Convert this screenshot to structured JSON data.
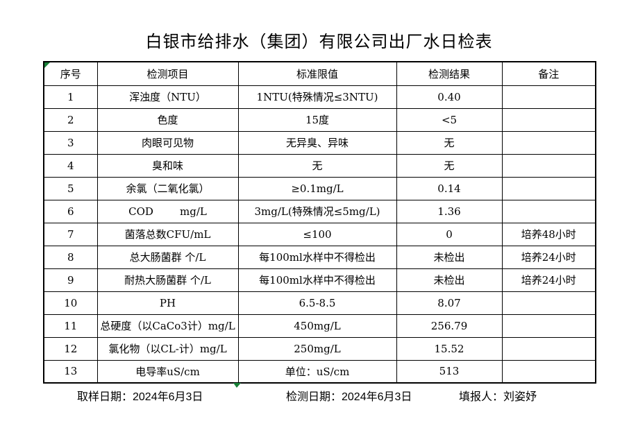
{
  "title": "白银市给排水（集团）有限公司出厂水日检表",
  "table": {
    "headers": {
      "no": "序号",
      "item": "检测项目",
      "limit": "标准限值",
      "result": "检测结果",
      "remark": "备注"
    },
    "rows": [
      {
        "no": "1",
        "item": "浑浊度（NTU）",
        "limit": "1NTU(特殊情况≤3NTU)",
        "result": "0.40",
        "remark": ""
      },
      {
        "no": "2",
        "item": "色度",
        "limit": "15度",
        "result": "<5",
        "remark": ""
      },
      {
        "no": "3",
        "item": "肉眼可见物",
        "limit": "无异臭、异味",
        "result": "无",
        "remark": ""
      },
      {
        "no": "4",
        "item": "臭和味",
        "limit": "无",
        "result": "无",
        "remark": ""
      },
      {
        "no": "5",
        "item": "余氯（二氧化氯）",
        "limit": "≥0.1mg/L",
        "result": "0.14",
        "remark": ""
      },
      {
        "no": "6",
        "item": "COD        mg/L",
        "limit": "3mg/L(特殊情况≤5mg/L)",
        "result": "1.36",
        "remark": ""
      },
      {
        "no": "7",
        "item": "菌落总数CFU/mL",
        "limit": "≤100",
        "result": "0",
        "remark": "培养48小时"
      },
      {
        "no": "8",
        "item": "总大肠菌群 个/L",
        "limit": "每100ml水样中不得检出",
        "result": "未检出",
        "remark": "培养24小时"
      },
      {
        "no": "9",
        "item": "耐热大肠菌群 个/L",
        "limit": "每100ml水样中不得检出",
        "result": "未检出",
        "remark": "培养24小时"
      },
      {
        "no": "10",
        "item": "PH",
        "limit": "6.5-8.5",
        "result": "8.07",
        "remark": ""
      },
      {
        "no": "11",
        "item": "总硬度（以CaCo3计）mg/L",
        "limit": "450mg/L",
        "result": "256.79",
        "remark": ""
      },
      {
        "no": "12",
        "item": "氯化物（以CL-计）mg/L",
        "limit": "250mg/L",
        "result": "15.52",
        "remark": ""
      },
      {
        "no": "13",
        "item": "电导率uS/cm",
        "limit": "单位：uS/cm",
        "result": "513",
        "remark": ""
      }
    ]
  },
  "footer": {
    "sampling_date": "取样日期：2024年6月3日",
    "test_date": "检测日期：2024年6月3日",
    "reporter": "填报人：刘姿妤"
  },
  "colors": {
    "indicator_green": "#188038",
    "border": "#000000",
    "text": "#000000",
    "background": "#ffffff"
  }
}
